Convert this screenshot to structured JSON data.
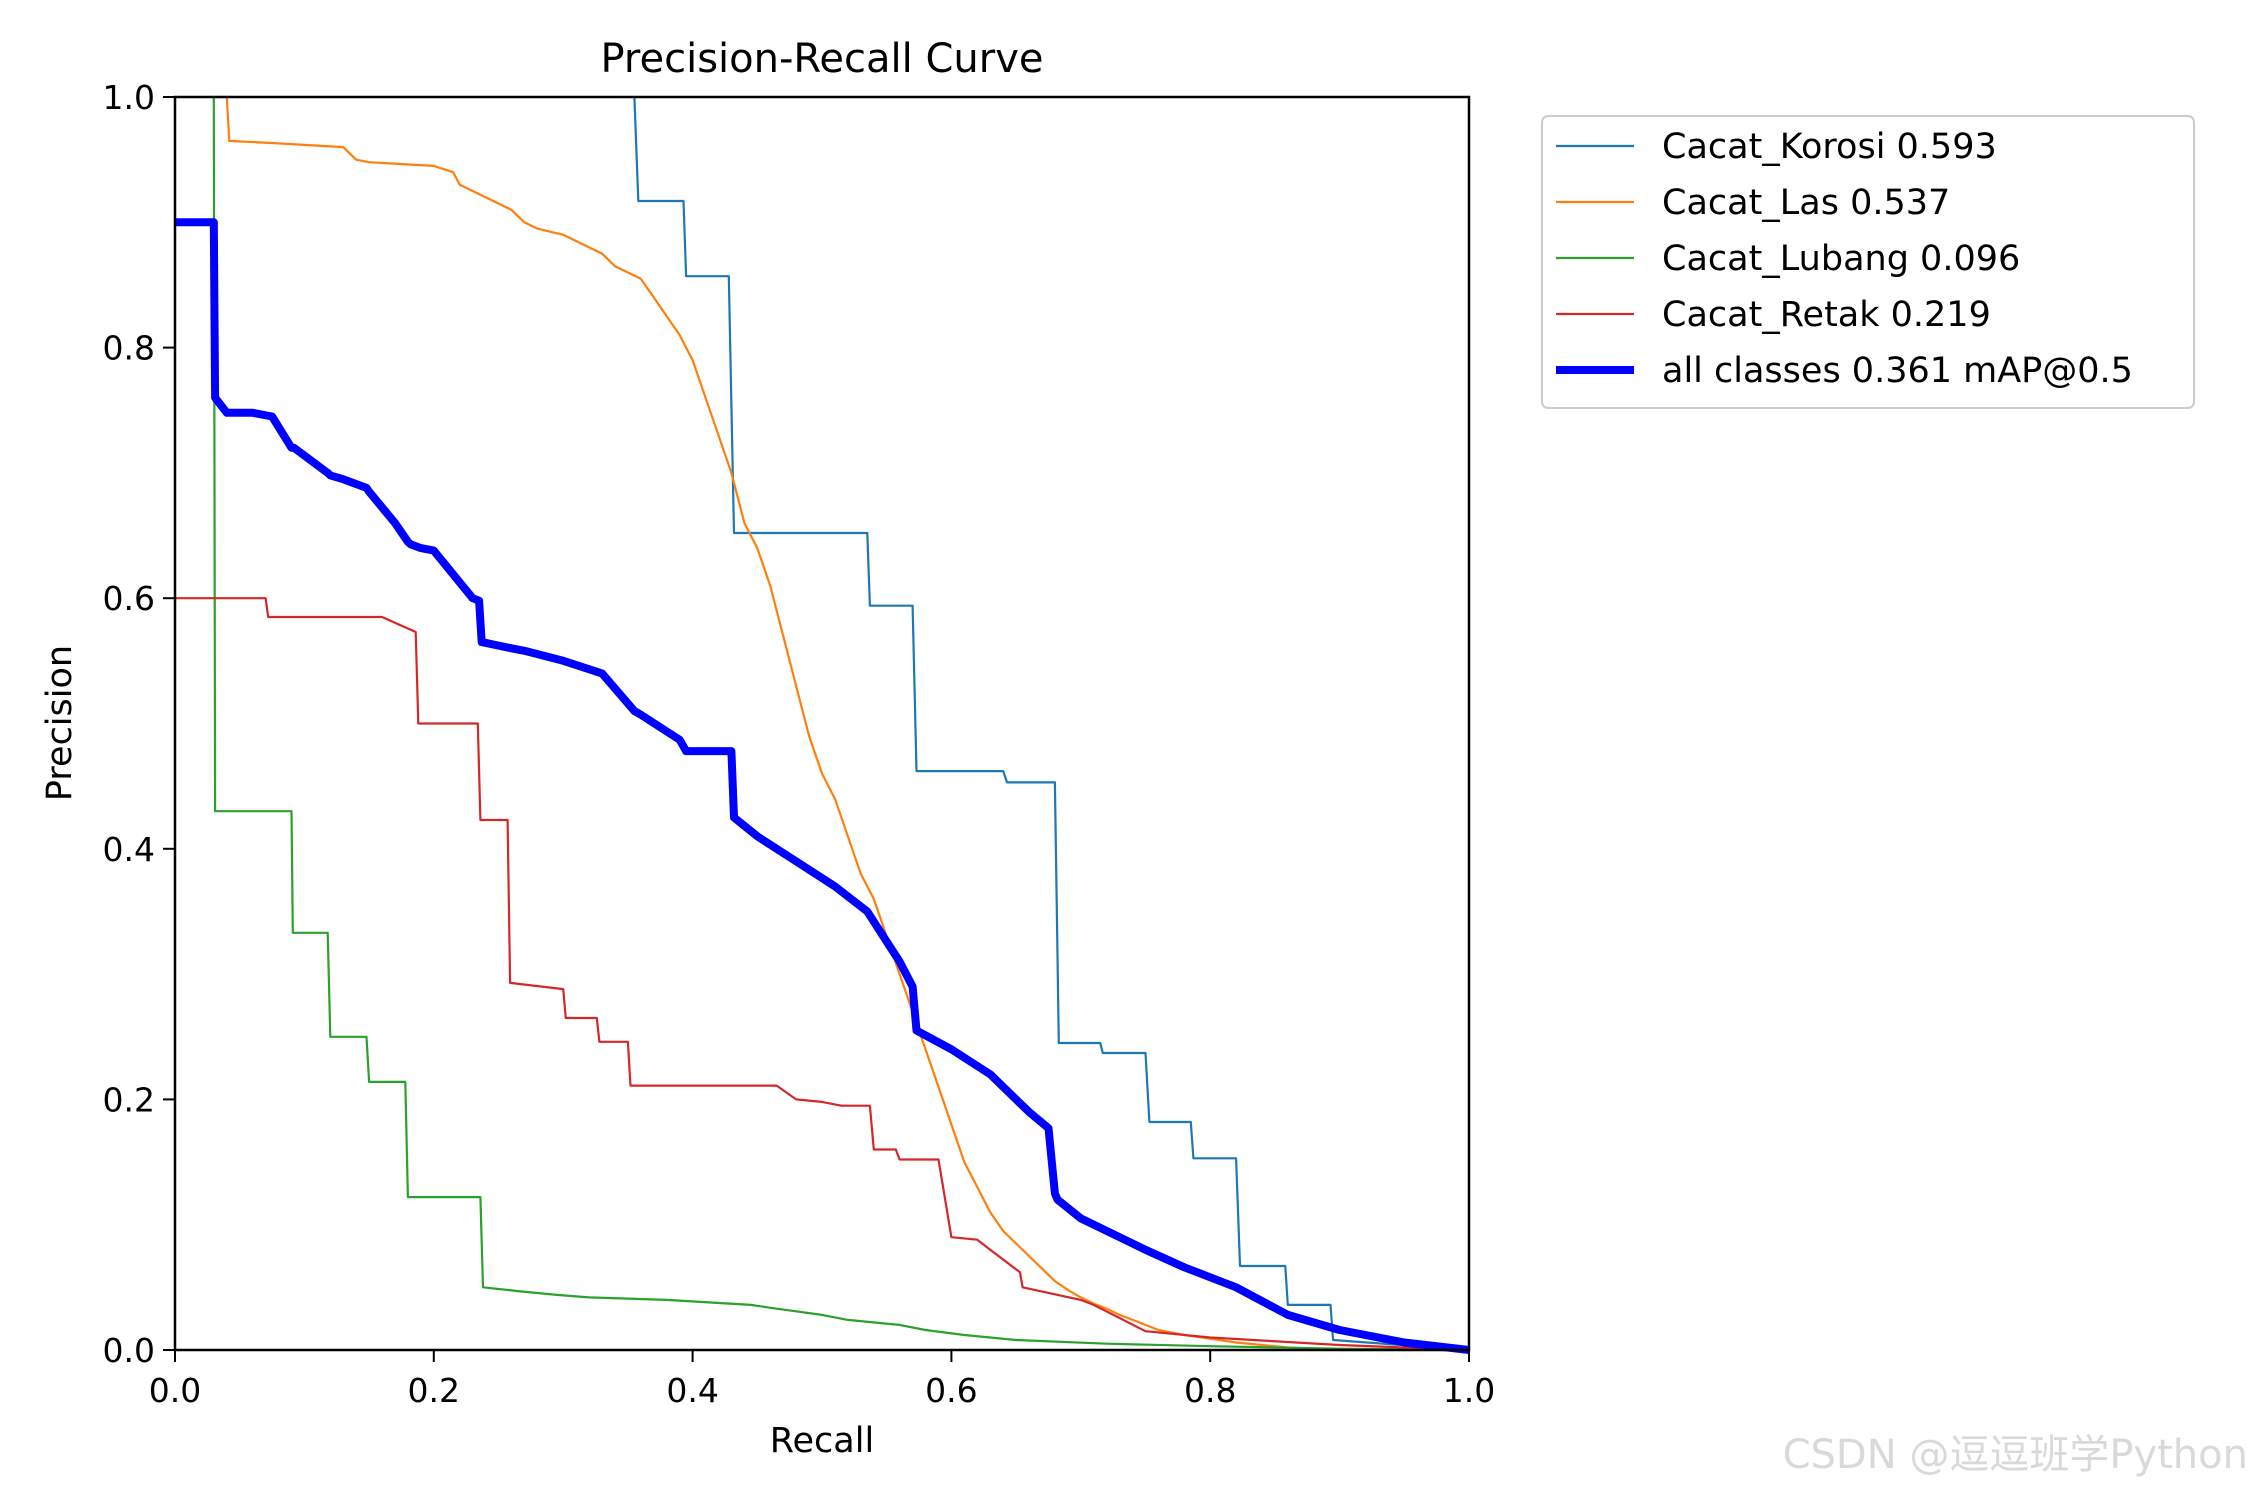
{
  "chart_data": {
    "type": "line",
    "title": "Precision-Recall Curve",
    "xlabel": "Recall",
    "ylabel": "Precision",
    "xlim": [
      0.0,
      1.0
    ],
    "ylim": [
      0.0,
      1.0
    ],
    "xticks": [
      "0.0",
      "0.2",
      "0.4",
      "0.6",
      "0.8",
      "1.0"
    ],
    "yticks": [
      "0.0",
      "0.2",
      "0.4",
      "0.6",
      "0.8",
      "1.0"
    ],
    "grid": false,
    "legend_position": "outside-top-right",
    "series": [
      {
        "name": "Cacat_Korosi 0.593",
        "color": "#1f77b4",
        "thick": false,
        "step": true,
        "x": [
          0.355,
          0.358,
          0.393,
          0.395,
          0.428,
          0.432,
          0.535,
          0.537,
          0.57,
          0.573,
          0.64,
          0.643,
          0.68,
          0.683,
          0.715,
          0.717,
          0.75,
          0.753,
          0.785,
          0.787,
          0.82,
          0.823,
          0.858,
          0.86,
          0.893,
          0.895,
          1.0
        ],
        "y": [
          1.0,
          0.917,
          0.917,
          0.857,
          0.857,
          0.652,
          0.652,
          0.594,
          0.594,
          0.462,
          0.462,
          0.453,
          0.453,
          0.245,
          0.245,
          0.237,
          0.237,
          0.182,
          0.182,
          0.153,
          0.153,
          0.067,
          0.067,
          0.036,
          0.036,
          0.008,
          0.0
        ]
      },
      {
        "name": "Cacat_Las 0.537",
        "color": "#ff7f0e",
        "thick": false,
        "step": false,
        "x": [
          0.03,
          0.04,
          0.042,
          0.08,
          0.13,
          0.14,
          0.15,
          0.2,
          0.215,
          0.22,
          0.24,
          0.25,
          0.26,
          0.27,
          0.28,
          0.3,
          0.33,
          0.34,
          0.36,
          0.37,
          0.39,
          0.4,
          0.41,
          0.42,
          0.43,
          0.44,
          0.45,
          0.46,
          0.47,
          0.48,
          0.49,
          0.5,
          0.51,
          0.52,
          0.53,
          0.54,
          0.55,
          0.56,
          0.57,
          0.58,
          0.59,
          0.6,
          0.61,
          0.62,
          0.63,
          0.64,
          0.65,
          0.66,
          0.67,
          0.68,
          0.69,
          0.7,
          0.71,
          0.72,
          0.73,
          0.74,
          0.75,
          0.76,
          0.78,
          0.8,
          0.82,
          0.84,
          0.86,
          0.88,
          0.9,
          0.92,
          0.94,
          0.96,
          0.98,
          1.0
        ],
        "y": [
          1.0,
          1.0,
          0.965,
          0.963,
          0.96,
          0.95,
          0.948,
          0.945,
          0.94,
          0.93,
          0.92,
          0.915,
          0.91,
          0.9,
          0.895,
          0.89,
          0.875,
          0.865,
          0.855,
          0.84,
          0.81,
          0.79,
          0.76,
          0.73,
          0.7,
          0.66,
          0.64,
          0.61,
          0.57,
          0.53,
          0.49,
          0.46,
          0.44,
          0.41,
          0.38,
          0.36,
          0.33,
          0.3,
          0.27,
          0.24,
          0.21,
          0.18,
          0.15,
          0.13,
          0.11,
          0.095,
          0.085,
          0.075,
          0.065,
          0.055,
          0.048,
          0.042,
          0.037,
          0.033,
          0.028,
          0.024,
          0.02,
          0.016,
          0.012,
          0.009,
          0.006,
          0.004,
          0.002,
          0.001,
          0.0,
          0.0,
          0.0,
          0.0,
          0.0,
          0.0
        ]
      },
      {
        "name": "Cacat_Lubang 0.096",
        "color": "#2ca02c",
        "thick": false,
        "step": true,
        "x": [
          0.03,
          0.031,
          0.09,
          0.091,
          0.118,
          0.12,
          0.148,
          0.15,
          0.178,
          0.18,
          0.236,
          0.238,
          0.265,
          0.295,
          0.32,
          0.38,
          0.445,
          0.465,
          0.5,
          0.52,
          0.56,
          0.58,
          0.61,
          0.65,
          0.72,
          0.8,
          0.9,
          1.0
        ],
        "y": [
          1.0,
          0.43,
          0.43,
          0.333,
          0.333,
          0.25,
          0.25,
          0.214,
          0.214,
          0.122,
          0.122,
          0.05,
          0.047,
          0.044,
          0.042,
          0.04,
          0.036,
          0.033,
          0.028,
          0.024,
          0.02,
          0.016,
          0.012,
          0.008,
          0.005,
          0.003,
          0.001,
          0.0
        ]
      },
      {
        "name": "Cacat_Retak 0.219",
        "color": "#d62728",
        "thick": false,
        "step": true,
        "x": [
          0.0,
          0.07,
          0.072,
          0.16,
          0.186,
          0.188,
          0.234,
          0.236,
          0.257,
          0.259,
          0.3,
          0.302,
          0.326,
          0.328,
          0.35,
          0.352,
          0.465,
          0.48,
          0.5,
          0.515,
          0.537,
          0.54,
          0.557,
          0.56,
          0.59,
          0.6,
          0.62,
          0.63,
          0.653,
          0.655,
          0.7,
          0.71,
          0.75,
          0.8,
          0.9,
          1.0
        ],
        "y": [
          0.6,
          0.6,
          0.585,
          0.585,
          0.573,
          0.5,
          0.5,
          0.423,
          0.423,
          0.293,
          0.288,
          0.265,
          0.265,
          0.246,
          0.246,
          0.211,
          0.211,
          0.2,
          0.198,
          0.195,
          0.195,
          0.16,
          0.16,
          0.152,
          0.152,
          0.09,
          0.088,
          0.08,
          0.062,
          0.05,
          0.04,
          0.036,
          0.015,
          0.01,
          0.004,
          0.0
        ]
      },
      {
        "name": "all classes 0.361 mAP@0.5",
        "color": "#0000ff",
        "thick": true,
        "step": false,
        "x": [
          0.0,
          0.03,
          0.031,
          0.04,
          0.06,
          0.075,
          0.09,
          0.092,
          0.118,
          0.12,
          0.13,
          0.148,
          0.15,
          0.17,
          0.18,
          0.182,
          0.19,
          0.2,
          0.23,
          0.235,
          0.237,
          0.26,
          0.27,
          0.3,
          0.33,
          0.355,
          0.36,
          0.39,
          0.395,
          0.43,
          0.432,
          0.45,
          0.48,
          0.51,
          0.535,
          0.56,
          0.57,
          0.573,
          0.6,
          0.63,
          0.66,
          0.675,
          0.68,
          0.682,
          0.7,
          0.73,
          0.75,
          0.78,
          0.8,
          0.82,
          0.86,
          0.9,
          0.95,
          1.0
        ],
        "y": [
          0.9,
          0.9,
          0.76,
          0.748,
          0.748,
          0.745,
          0.72,
          0.72,
          0.7,
          0.698,
          0.695,
          0.688,
          0.685,
          0.66,
          0.645,
          0.643,
          0.64,
          0.638,
          0.6,
          0.598,
          0.565,
          0.56,
          0.558,
          0.55,
          0.54,
          0.51,
          0.507,
          0.487,
          0.478,
          0.478,
          0.425,
          0.41,
          0.39,
          0.37,
          0.35,
          0.31,
          0.29,
          0.255,
          0.24,
          0.22,
          0.19,
          0.177,
          0.125,
          0.12,
          0.105,
          0.09,
          0.08,
          0.066,
          0.058,
          0.05,
          0.028,
          0.016,
          0.006,
          0.0
        ]
      }
    ]
  },
  "watermark": "CSDN @逗逗班学Python"
}
